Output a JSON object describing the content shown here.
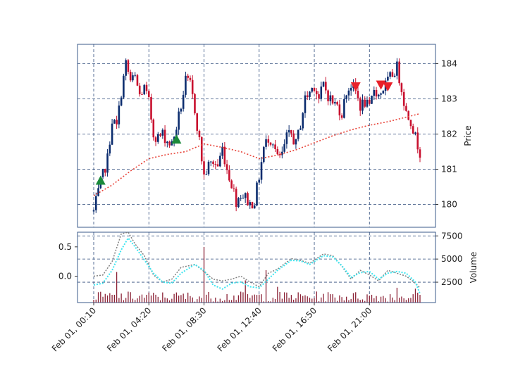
{
  "chart_data": {
    "type": "candlestick",
    "grid": true,
    "colors": {
      "up": "#0b2c6e",
      "down": "#c8102e",
      "sma": "#e8443a",
      "buy_marker": "#1a8a3a",
      "sell_marker": "#e8202a",
      "volume_bar": "#8b2236",
      "osc_gray": "#808080",
      "osc_cyan": "#3ee6f0",
      "frame": "#3a5a8a",
      "grid": "#2c4a7a"
    },
    "price_panel": {
      "ylabel": "Price",
      "yticks": [
        180,
        181,
        182,
        183,
        184
      ],
      "ylim": [
        179.35,
        184.55
      ],
      "sma_points": [
        [
          0,
          180.25
        ],
        [
          8,
          180.55
        ],
        [
          16,
          180.95
        ],
        [
          24,
          181.3
        ],
        [
          32,
          181.42
        ],
        [
          40,
          181.5
        ],
        [
          48,
          181.72
        ],
        [
          56,
          181.62
        ],
        [
          64,
          181.5
        ],
        [
          72,
          181.3
        ],
        [
          80,
          181.4
        ],
        [
          88,
          181.55
        ],
        [
          96,
          181.75
        ],
        [
          104,
          181.95
        ],
        [
          112,
          182.12
        ],
        [
          120,
          182.25
        ],
        [
          128,
          182.35
        ],
        [
          136,
          182.48
        ],
        [
          142,
          182.58
        ]
      ],
      "buy_markers": [
        [
          3,
          180.68
        ],
        [
          36,
          181.85
        ]
      ],
      "sell_markers": [
        [
          114,
          183.35
        ],
        [
          125,
          183.4
        ],
        [
          128,
          183.35
        ]
      ]
    },
    "lower_panel": {
      "left_yticks": [
        0.0,
        0.5
      ],
      "left_ylim": [
        -0.45,
        0.75
      ],
      "right_ylabel": "Volume",
      "right_yticks": [
        2500,
        5000,
        7500
      ],
      "right_ylim": [
        300,
        7900
      ],
      "volume_spikes": [
        [
          10,
          3600
        ],
        [
          48,
          6300
        ],
        [
          66,
          2700
        ],
        [
          75,
          3800
        ],
        [
          80,
          2000
        ],
        [
          132,
          1900
        ],
        [
          140,
          1800
        ]
      ],
      "dotted_series": [
        [
          0,
          0.0
        ],
        [
          4,
          0.02
        ],
        [
          8,
          0.25
        ],
        [
          12,
          0.72
        ],
        [
          15,
          0.75
        ],
        [
          18,
          0.55
        ],
        [
          22,
          0.35
        ],
        [
          26,
          0.02
        ],
        [
          30,
          -0.1
        ],
        [
          34,
          -0.05
        ],
        [
          38,
          0.15
        ],
        [
          44,
          0.2
        ],
        [
          48,
          0.08
        ],
        [
          52,
          -0.05
        ],
        [
          56,
          -0.08
        ],
        [
          60,
          -0.05
        ],
        [
          64,
          0.0
        ],
        [
          68,
          -0.1
        ],
        [
          72,
          -0.18
        ],
        [
          76,
          0.05
        ],
        [
          80,
          0.12
        ],
        [
          86,
          0.3
        ],
        [
          90,
          0.27
        ],
        [
          94,
          0.22
        ],
        [
          100,
          0.38
        ],
        [
          104,
          0.35
        ],
        [
          108,
          0.17
        ],
        [
          112,
          -0.05
        ],
        [
          116,
          0.1
        ],
        [
          120,
          0.02
        ],
        [
          124,
          -0.08
        ],
        [
          128,
          0.1
        ],
        [
          132,
          0.05
        ],
        [
          136,
          0.0
        ],
        [
          140,
          -0.12
        ],
        [
          142,
          -0.2
        ]
      ],
      "cyan_series": [
        [
          0,
          -0.15
        ],
        [
          4,
          -0.12
        ],
        [
          8,
          0.1
        ],
        [
          12,
          0.45
        ],
        [
          15,
          0.65
        ],
        [
          18,
          0.5
        ],
        [
          22,
          0.28
        ],
        [
          26,
          0.05
        ],
        [
          30,
          -0.1
        ],
        [
          34,
          -0.12
        ],
        [
          38,
          0.05
        ],
        [
          44,
          0.2
        ],
        [
          48,
          0.1
        ],
        [
          52,
          -0.15
        ],
        [
          56,
          -0.22
        ],
        [
          60,
          -0.12
        ],
        [
          64,
          -0.1
        ],
        [
          68,
          -0.18
        ],
        [
          72,
          -0.2
        ],
        [
          76,
          -0.05
        ],
        [
          80,
          0.1
        ],
        [
          86,
          0.27
        ],
        [
          90,
          0.26
        ],
        [
          94,
          0.2
        ],
        [
          100,
          0.35
        ],
        [
          104,
          0.33
        ],
        [
          108,
          0.18
        ],
        [
          112,
          -0.02
        ],
        [
          116,
          0.06
        ],
        [
          120,
          0.08
        ],
        [
          124,
          -0.05
        ],
        [
          128,
          0.05
        ],
        [
          132,
          0.08
        ],
        [
          136,
          0.05
        ],
        [
          140,
          -0.1
        ],
        [
          142,
          -0.3
        ]
      ]
    },
    "n_bars": 143,
    "xtick_labels": [
      {
        "x": 0,
        "label": "Feb 01, 00:10"
      },
      {
        "x": 24,
        "label": "Feb 01, 04:20"
      },
      {
        "x": 48,
        "label": "Feb 01, 08:30"
      },
      {
        "x": 72,
        "label": "Feb 01, 12:40"
      },
      {
        "x": 96,
        "label": "Feb 01, 16:50"
      },
      {
        "x": 120,
        "label": "Feb 01, 21:00"
      }
    ],
    "price_path": [
      [
        0,
        179.8
      ],
      [
        3,
        180.6
      ],
      [
        6,
        181.3
      ],
      [
        8,
        182.4
      ],
      [
        10,
        182.2
      ],
      [
        12,
        183.2
      ],
      [
        14,
        184.0
      ],
      [
        16,
        183.5
      ],
      [
        18,
        183.6
      ],
      [
        20,
        183.1
      ],
      [
        22,
        183.3
      ],
      [
        24,
        182.9
      ],
      [
        26,
        182.0
      ],
      [
        28,
        181.9
      ],
      [
        30,
        182.0
      ],
      [
        32,
        181.8
      ],
      [
        34,
        181.7
      ],
      [
        36,
        182.2
      ],
      [
        38,
        182.8
      ],
      [
        40,
        183.5
      ],
      [
        42,
        183.4
      ],
      [
        44,
        182.7
      ],
      [
        46,
        181.8
      ],
      [
        48,
        180.8
      ],
      [
        50,
        181.1
      ],
      [
        52,
        181.2
      ],
      [
        54,
        181.1
      ],
      [
        56,
        181.6
      ],
      [
        58,
        181.0
      ],
      [
        60,
        180.6
      ],
      [
        62,
        180.1
      ],
      [
        64,
        180.3
      ],
      [
        66,
        180.2
      ],
      [
        68,
        180.0
      ],
      [
        70,
        180.1
      ],
      [
        72,
        180.8
      ],
      [
        74,
        181.6
      ],
      [
        76,
        181.9
      ],
      [
        78,
        181.8
      ],
      [
        80,
        181.3
      ],
      [
        82,
        181.4
      ],
      [
        84,
        181.9
      ],
      [
        86,
        182.0
      ],
      [
        88,
        181.7
      ],
      [
        90,
        182.3
      ],
      [
        92,
        183.0
      ],
      [
        94,
        183.2
      ],
      [
        96,
        183.4
      ],
      [
        98,
        183.0
      ],
      [
        100,
        183.4
      ],
      [
        102,
        183.1
      ],
      [
        104,
        182.9
      ],
      [
        106,
        182.8
      ],
      [
        108,
        182.6
      ],
      [
        110,
        183.2
      ],
      [
        112,
        183.4
      ],
      [
        114,
        183.2
      ],
      [
        116,
        182.8
      ],
      [
        118,
        182.9
      ],
      [
        120,
        182.7
      ],
      [
        122,
        183.3
      ],
      [
        124,
        183.1
      ],
      [
        126,
        183.3
      ],
      [
        128,
        183.5
      ],
      [
        130,
        183.7
      ],
      [
        132,
        183.9
      ],
      [
        134,
        183.3
      ],
      [
        136,
        182.6
      ],
      [
        138,
        182.4
      ],
      [
        140,
        181.9
      ],
      [
        142,
        181.5
      ]
    ]
  }
}
